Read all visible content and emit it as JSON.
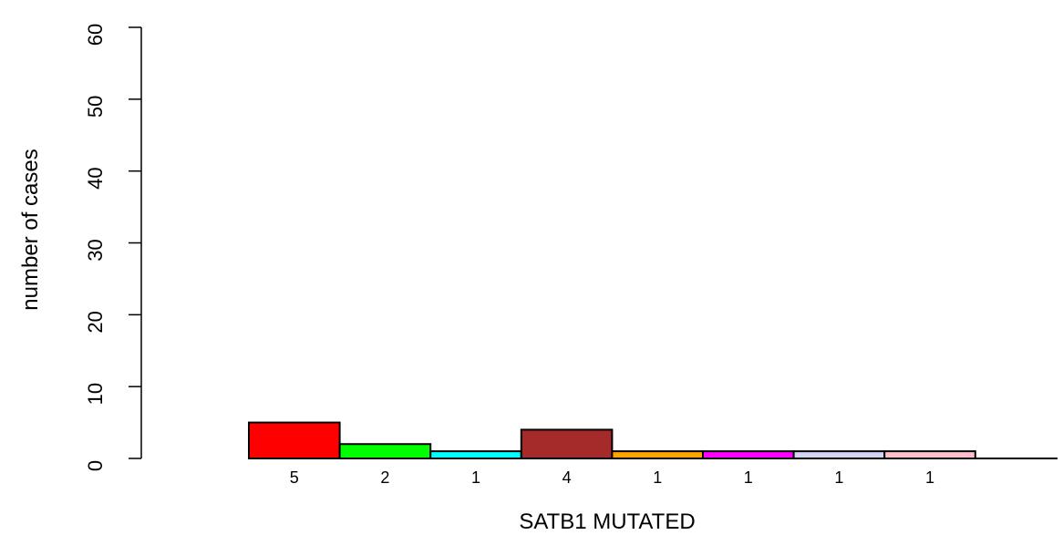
{
  "chart_data": {
    "type": "bar",
    "xlabel": "SATB1 MUTATED",
    "ylabel": "number of cases",
    "ylim": [
      0,
      60
    ],
    "yticks": [
      0,
      10,
      20,
      30,
      40,
      50,
      60
    ],
    "grid": false,
    "bars": [
      {
        "value": 5,
        "label": "5",
        "color": "#ff0000"
      },
      {
        "value": 2,
        "label": "2",
        "color": "#00ff00"
      },
      {
        "value": 1,
        "label": "1",
        "color": "#00ffff"
      },
      {
        "value": 4,
        "label": "4",
        "color": "#a52a2a"
      },
      {
        "value": 1,
        "label": "1",
        "color": "#ffa500"
      },
      {
        "value": 1,
        "label": "1",
        "color": "#ff00ff"
      },
      {
        "value": 1,
        "label": "1",
        "color": "#d3d3f3"
      },
      {
        "value": 1,
        "label": "1",
        "color": "#ffc0cb"
      }
    ]
  }
}
